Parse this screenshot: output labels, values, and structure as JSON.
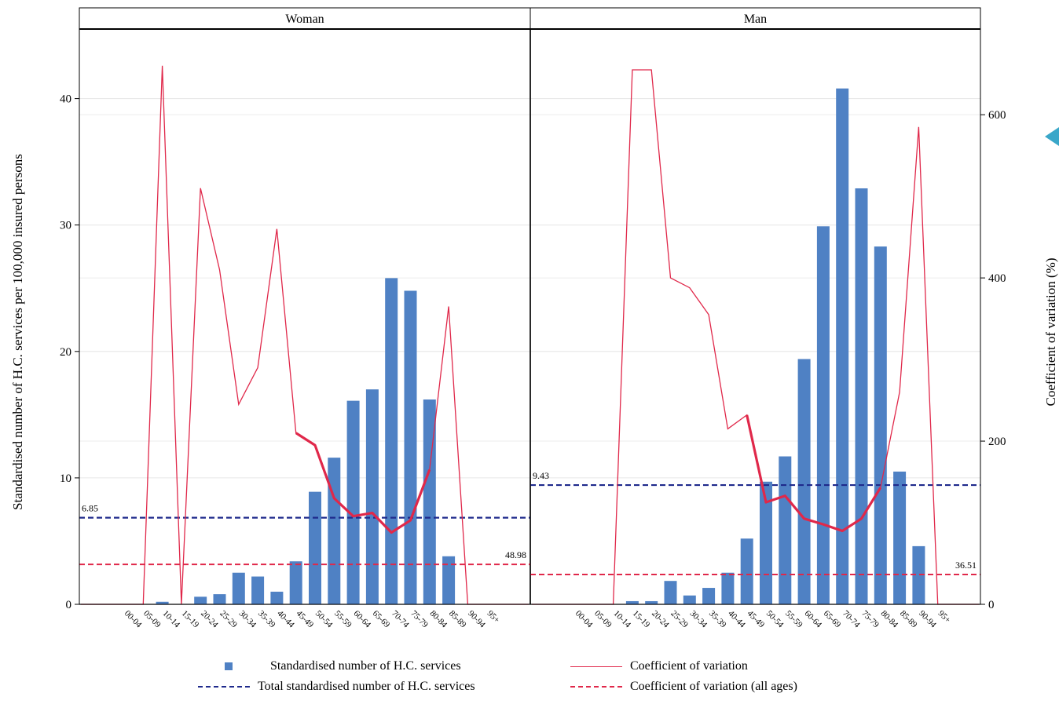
{
  "chart_data": {
    "type": "bar+line",
    "panels": [
      {
        "title": "Woman",
        "categories": [
          "00-04",
          "05-09",
          "10-14",
          "15-19",
          "20-24",
          "25-29",
          "30-34",
          "35-39",
          "40-44",
          "45-49",
          "50-54",
          "55-59",
          "60-64",
          "65-69",
          "70-74",
          "75-79",
          "80-84",
          "85-89",
          "90-94",
          "95+"
        ],
        "bars": [
          0,
          0,
          0.2,
          0,
          0.6,
          0.8,
          2.5,
          2.2,
          1.0,
          3.4,
          8.9,
          11.6,
          16.1,
          17.0,
          25.8,
          24.8,
          16.2,
          3.8,
          0,
          0
        ],
        "cv": [
          0,
          0,
          660,
          0,
          510,
          410,
          245,
          290,
          460,
          210,
          195,
          130,
          108,
          112,
          88,
          103,
          165,
          365,
          0,
          0
        ],
        "cv_thick_from": "45-49",
        "cv_thick_to": "80-84",
        "total_line": 6.85,
        "total_label": "6.85",
        "cv_all": 48.98,
        "cv_all_label": "48.98"
      },
      {
        "title": "Man",
        "categories": [
          "00-04",
          "05-09",
          "10-14",
          "15-19",
          "20-24",
          "25-29",
          "30-34",
          "35-39",
          "40-44",
          "45-49",
          "50-54",
          "55-59",
          "60-64",
          "65-69",
          "70-74",
          "75-79",
          "80-84",
          "85-89",
          "90-94",
          "95+"
        ],
        "bars": [
          0,
          0,
          0,
          0.25,
          0.25,
          1.85,
          0.7,
          1.3,
          2.5,
          5.2,
          9.7,
          11.7,
          19.4,
          29.9,
          40.8,
          32.9,
          28.3,
          10.5,
          4.6,
          0
        ],
        "cv": [
          0,
          0,
          0,
          655,
          655,
          400,
          388,
          355,
          215,
          232,
          125,
          133,
          105,
          98,
          90,
          105,
          143,
          260,
          585,
          0
        ],
        "cv_thick_from": "45-49",
        "cv_thick_to": "80-84",
        "total_line": 9.43,
        "total_label": "9.43",
        "cv_all": 36.51,
        "cv_all_label": "36.51"
      }
    ],
    "left_axis": {
      "label": "Standardised number of H.C. services per 100,000 insured persons",
      "ylim": [
        0,
        45.5
      ],
      "ticks": [
        0,
        10,
        20,
        30,
        40
      ]
    },
    "right_axis": {
      "label": "Coefficient of variation (%)",
      "ylim": [
        0,
        705
      ],
      "ticks": [
        0,
        200,
        400,
        600
      ]
    },
    "grid": true,
    "legend": {
      "placement": "bottom",
      "items": [
        {
          "label": "Standardised number of H.C. services",
          "kind": "square",
          "color": "#4f81c4"
        },
        {
          "label": "Coefficient of variation",
          "kind": "line",
          "color": "#e0284a"
        },
        {
          "label": "Total standardised number of H.C. services",
          "kind": "dash",
          "color": "#1f2a8c"
        },
        {
          "label": "Coefficient of variation (all ages)",
          "kind": "dash",
          "color": "#e0284a"
        }
      ]
    },
    "colors": {
      "bar": "#4f81c4",
      "cv_line": "#e0284a",
      "total_line": "#1f2a8c",
      "cv_all_line": "#e0284a",
      "cv_all_label": "#d8174a",
      "total_label": "#1f2a8c"
    }
  }
}
